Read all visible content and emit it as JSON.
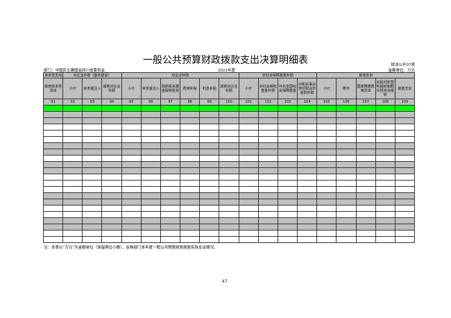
{
  "title": "一般公共预算财政拨款支出决算明细表",
  "form_code": "财决公开07表",
  "department": "部门：中国民主建国会四川省委员会",
  "year": "2021年度",
  "unit": "金额单位：万元",
  "group_headers": [
    "资本性支出",
    "对企业补助（基本建设）",
    "对企业补助",
    "对社会保障基金补助",
    "其他支出"
  ],
  "columns": [
    "其他资本性支出",
    "小计",
    "资本金注入",
    "其他对企业补助",
    "小计",
    "资本金注入",
    "政府投资基金股权投资",
    "费用补贴",
    "利息补贴",
    "其他对企业补助",
    "小计",
    "对社会保险基金补助",
    "补充全国社会保障基金",
    "对机关事业单位职业年金的补助",
    "小计",
    "赠与",
    "国家赔偿费用支出",
    "对民间非营利组织和群众性自治组织",
    "其他支出"
  ],
  "column_numbers": [
    "91",
    "92",
    "93",
    "94",
    "95",
    "96",
    "97",
    "98",
    "99",
    "100",
    "101",
    "102",
    "103",
    "104",
    "105",
    "106",
    "107",
    "108",
    "109"
  ],
  "row_shading": [
    "green",
    "g",
    "g",
    "w",
    "w",
    "w",
    "g",
    "g",
    "w",
    "g",
    "g",
    "w",
    "w",
    "w",
    "g",
    "g",
    "w",
    "w",
    "g",
    "g",
    "w",
    "w"
  ],
  "footnote": "注：本表以“万元”为金额单位（保留两位小数），反映部门本年度一般公共预算财政拨款实际支出情况。",
  "page_number": "47",
  "colors": {
    "header": "#c0c0c0",
    "highlight": "#00ff00"
  }
}
